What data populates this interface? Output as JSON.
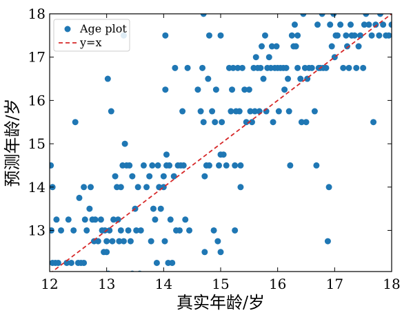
{
  "chart_data": {
    "type": "scatter",
    "title": "",
    "xlabel": "真实年龄/岁",
    "ylabel": "预测年龄/岁",
    "xlim": [
      12,
      18
    ],
    "ylim": [
      12.05,
      18
    ],
    "xticks": [
      "12",
      "13",
      "14",
      "15",
      "16",
      "17",
      "18"
    ],
    "yticks": [
      "13",
      "14",
      "15",
      "16",
      "17",
      "18"
    ],
    "grid": false,
    "legend_position": "top-left",
    "series": [
      {
        "name": "Age plot",
        "kind": "scatter",
        "color": "#1f77b4",
        "points": [
          [
            12.02,
            14.5
          ],
          [
            12.05,
            14.0
          ],
          [
            12.03,
            13.0
          ],
          [
            12.05,
            12.25
          ],
          [
            12.1,
            12.25
          ],
          [
            12.12,
            13.25
          ],
          [
            12.15,
            12.25
          ],
          [
            12.2,
            13.0
          ],
          [
            12.3,
            12.25
          ],
          [
            12.33,
            13.25
          ],
          [
            12.38,
            12.25
          ],
          [
            12.42,
            13.0
          ],
          [
            12.45,
            15.5
          ],
          [
            12.5,
            12.25
          ],
          [
            12.52,
            13.75
          ],
          [
            12.55,
            12.25
          ],
          [
            12.6,
            14.0
          ],
          [
            12.62,
            13.25
          ],
          [
            12.6,
            12.25
          ],
          [
            12.65,
            13.0
          ],
          [
            12.7,
            13.5
          ],
          [
            12.72,
            14.0
          ],
          [
            12.75,
            13.25
          ],
          [
            12.78,
            12.75
          ],
          [
            12.8,
            13.25
          ],
          [
            12.85,
            12.75
          ],
          [
            12.9,
            13.25
          ],
          [
            12.92,
            13.0
          ],
          [
            12.95,
            12.5
          ],
          [
            12.97,
            13.0
          ],
          [
            13.0,
            12.75
          ],
          [
            13.0,
            12.5
          ],
          [
            13.02,
            16.5
          ],
          [
            13.03,
            12.0
          ],
          [
            13.05,
            13.0
          ],
          [
            13.08,
            15.75
          ],
          [
            13.1,
            12.75
          ],
          [
            13.12,
            13.25
          ],
          [
            13.15,
            14.25
          ],
          [
            13.18,
            14.0
          ],
          [
            13.2,
            13.25
          ],
          [
            13.22,
            12.75
          ],
          [
            13.25,
            14.0
          ],
          [
            13.25,
            13.0
          ],
          [
            13.28,
            14.5
          ],
          [
            13.3,
            17.5
          ],
          [
            13.3,
            12.75
          ],
          [
            13.32,
            15.0
          ],
          [
            13.35,
            14.5
          ],
          [
            13.38,
            13.0
          ],
          [
            13.4,
            14.5
          ],
          [
            13.42,
            12.75
          ],
          [
            13.45,
            14.25
          ],
          [
            13.45,
            12.0
          ],
          [
            13.5,
            13.5
          ],
          [
            13.52,
            13.0
          ],
          [
            13.55,
            14.0
          ],
          [
            13.58,
            12.0
          ],
          [
            13.6,
            13.0
          ],
          [
            13.65,
            14.5
          ],
          [
            13.7,
            14.0
          ],
          [
            13.75,
            14.25
          ],
          [
            13.78,
            12.75
          ],
          [
            13.8,
            14.5
          ],
          [
            13.82,
            13.5
          ],
          [
            13.85,
            13.25
          ],
          [
            13.88,
            12.25
          ],
          [
            13.9,
            14.5
          ],
          [
            13.92,
            14.0
          ],
          [
            13.95,
            13.5
          ],
          [
            14.0,
            14.0
          ],
          [
            14.0,
            14.25
          ],
          [
            14.02,
            12.75
          ],
          [
            14.05,
            14.5
          ],
          [
            14.03,
            17.5
          ],
          [
            14.03,
            16.25
          ],
          [
            14.05,
            14.75
          ],
          [
            14.08,
            12.25
          ],
          [
            14.1,
            14.5
          ],
          [
            14.12,
            13.25
          ],
          [
            14.15,
            12.25
          ],
          [
            14.18,
            14.25
          ],
          [
            14.2,
            16.75
          ],
          [
            14.22,
            13.0
          ],
          [
            14.25,
            14.5
          ],
          [
            14.28,
            13.0
          ],
          [
            14.3,
            14.5
          ],
          [
            14.33,
            15.75
          ],
          [
            14.35,
            14.5
          ],
          [
            14.38,
            13.25
          ],
          [
            14.42,
            16.75
          ],
          [
            14.45,
            13.0
          ],
          [
            14.6,
            16.25
          ],
          [
            14.65,
            15.75
          ],
          [
            14.68,
            16.75
          ],
          [
            14.7,
            18.0
          ],
          [
            14.7,
            15.5
          ],
          [
            14.72,
            14.25
          ],
          [
            14.72,
            12.5
          ],
          [
            14.75,
            14.5
          ],
          [
            14.78,
            16.5
          ],
          [
            14.8,
            17.5
          ],
          [
            14.8,
            14.5
          ],
          [
            14.85,
            15.75
          ],
          [
            14.88,
            13.0
          ],
          [
            14.9,
            15.5
          ],
          [
            14.92,
            16.25
          ],
          [
            14.95,
            12.75
          ],
          [
            14.97,
            14.5
          ],
          [
            15.0,
            14.75
          ],
          [
            15.0,
            17.5
          ],
          [
            15.02,
            15.5
          ],
          [
            15.05,
            14.75
          ],
          [
            15.0,
            12.5
          ],
          [
            15.1,
            14.5
          ],
          [
            15.15,
            16.75
          ],
          [
            15.18,
            15.75
          ],
          [
            15.2,
            16.25
          ],
          [
            15.22,
            16.75
          ],
          [
            15.25,
            13.0
          ],
          [
            15.25,
            14.5
          ],
          [
            15.27,
            15.75
          ],
          [
            15.3,
            16.75
          ],
          [
            15.33,
            15.75
          ],
          [
            15.35,
            14.5
          ],
          [
            15.35,
            14.0
          ],
          [
            15.38,
            16.75
          ],
          [
            15.42,
            16.25
          ],
          [
            15.45,
            15.5
          ],
          [
            15.5,
            16.25
          ],
          [
            15.52,
            15.75
          ],
          [
            15.55,
            15.5
          ],
          [
            15.58,
            16.75
          ],
          [
            15.6,
            15.75
          ],
          [
            15.62,
            17.0
          ],
          [
            15.65,
            16.75
          ],
          [
            15.68,
            15.75
          ],
          [
            15.7,
            16.75
          ],
          [
            15.72,
            17.25
          ],
          [
            15.75,
            16.5
          ],
          [
            15.78,
            17.5
          ],
          [
            15.8,
            15.75
          ],
          [
            15.82,
            16.75
          ],
          [
            15.85,
            17.0
          ],
          [
            15.88,
            16.75
          ],
          [
            15.9,
            17.25
          ],
          [
            15.92,
            15.5
          ],
          [
            15.95,
            16.75
          ],
          [
            15.98,
            17.25
          ],
          [
            16.0,
            16.75
          ],
          [
            16.02,
            15.75
          ],
          [
            16.05,
            16.75
          ],
          [
            16.1,
            16.75
          ],
          [
            16.12,
            16.25
          ],
          [
            16.15,
            16.75
          ],
          [
            16.18,
            16.5
          ],
          [
            16.2,
            15.75
          ],
          [
            16.22,
            14.5
          ],
          [
            16.25,
            17.5
          ],
          [
            16.28,
            17.25
          ],
          [
            16.3,
            17.75
          ],
          [
            16.32,
            17.25
          ],
          [
            16.35,
            17.5
          ],
          [
            16.35,
            16.75
          ],
          [
            16.4,
            16.5
          ],
          [
            16.42,
            15.5
          ],
          [
            16.45,
            18.0
          ],
          [
            16.48,
            16.75
          ],
          [
            16.5,
            15.5
          ],
          [
            16.52,
            16.5
          ],
          [
            16.55,
            16.75
          ],
          [
            16.6,
            16.75
          ],
          [
            16.65,
            15.75
          ],
          [
            16.68,
            14.5
          ],
          [
            16.7,
            17.75
          ],
          [
            16.72,
            16.75
          ],
          [
            16.75,
            16.75
          ],
          [
            16.78,
            18.0
          ],
          [
            16.8,
            16.75
          ],
          [
            16.85,
            16.75
          ],
          [
            16.88,
            12.75
          ],
          [
            16.9,
            14.0
          ],
          [
            16.92,
            17.75
          ],
          [
            16.95,
            17.25
          ],
          [
            16.98,
            18.0
          ],
          [
            17.0,
            17.0
          ],
          [
            17.02,
            17.5
          ],
          [
            17.05,
            17.5
          ],
          [
            17.1,
            17.75
          ],
          [
            17.15,
            16.75
          ],
          [
            17.2,
            17.5
          ],
          [
            17.22,
            17.25
          ],
          [
            17.25,
            16.75
          ],
          [
            17.28,
            17.75
          ],
          [
            17.3,
            17.5
          ],
          [
            17.35,
            17.5
          ],
          [
            17.38,
            16.75
          ],
          [
            17.42,
            17.25
          ],
          [
            17.45,
            17.5
          ],
          [
            17.5,
            16.75
          ],
          [
            17.52,
            17.75
          ],
          [
            17.55,
            18.0
          ],
          [
            17.6,
            17.75
          ],
          [
            17.65,
            17.5
          ],
          [
            17.68,
            15.5
          ],
          [
            17.72,
            17.75
          ],
          [
            17.78,
            17.5
          ],
          [
            17.8,
            18.0
          ],
          [
            17.85,
            17.75
          ],
          [
            17.9,
            17.5
          ],
          [
            17.95,
            17.5
          ],
          [
            18.0,
            17.75
          ]
        ]
      },
      {
        "name": "y=x",
        "kind": "line",
        "color": "#d62728",
        "dash": "dashed",
        "points": [
          [
            12,
            12
          ],
          [
            18,
            18
          ]
        ]
      }
    ]
  }
}
